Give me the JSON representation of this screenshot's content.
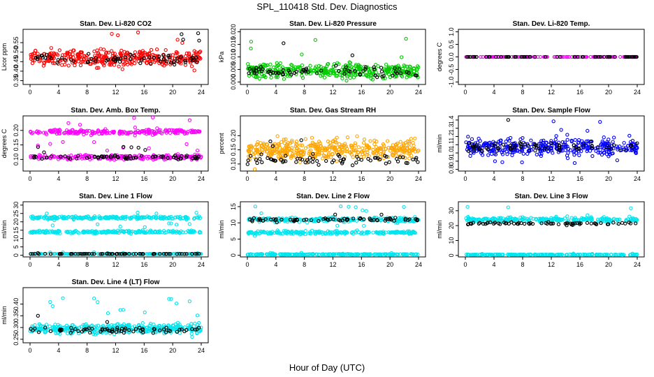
{
  "figure": {
    "title": "SPL_110418  Std. Dev. Diagnostics",
    "xlabel": "Hour of Day (UTC)"
  },
  "chart_data": [
    {
      "type": "scatter",
      "title": "Stan. Dev. Li-820 CO2",
      "ylabel": "Licor ppm",
      "xlim": [
        0,
        24
      ],
      "xticks": [
        0,
        4,
        8,
        12,
        16,
        20,
        24
      ],
      "ylim": [
        0.33,
        0.62
      ],
      "yticks": [
        0.35,
        0.4,
        0.45,
        0.5,
        0.55
      ],
      "ytick_labels": [
        "0.35",
        "0.40",
        "0.45",
        "0.50",
        "0.55"
      ],
      "series": [
        {
          "color": "#ff0000",
          "clusters": [
            {
              "center": 0.47,
              "spread": 0.04,
              "n": 360
            }
          ]
        },
        {
          "color": "#000000",
          "clusters": [
            {
              "center": 0.46,
              "spread": 0.025,
              "n": 70
            }
          ]
        }
      ]
    },
    {
      "type": "scatter",
      "title": "Stan. Dev. Li-820 Pressure",
      "ylabel": "kPa",
      "xlim": [
        0,
        24
      ],
      "xticks": [
        0,
        4,
        8,
        12,
        16,
        20,
        24
      ],
      "ylim": [
        -0.001,
        0.021
      ],
      "yticks": [
        0.0,
        0.005,
        0.01,
        0.015,
        0.02
      ],
      "ytick_labels": [
        "0.000",
        "0.005",
        "0.010",
        "0.015",
        "0.020"
      ],
      "series": [
        {
          "color": "#00cc00",
          "clusters": [
            {
              "center": 0.0045,
              "spread": 0.003,
              "n": 380
            }
          ]
        },
        {
          "color": "#000000",
          "clusters": [
            {
              "center": 0.004,
              "spread": 0.002,
              "n": 70
            }
          ]
        }
      ]
    },
    {
      "type": "scatter",
      "title": "Stan. Dev. Li-820 Temp.",
      "ylabel": "degrees C",
      "xlim": [
        0,
        24
      ],
      "xticks": [
        0,
        4,
        8,
        12,
        16,
        20,
        24
      ],
      "ylim": [
        -1.1,
        1.1
      ],
      "yticks": [
        -1.0,
        -0.5,
        0.0,
        0.5,
        1.0
      ],
      "ytick_labels": [
        "-1.0",
        "-0.5",
        "0.0",
        "0.5",
        "1.0"
      ],
      "series": [
        {
          "color": "#ff00ff",
          "clusters": [
            {
              "center": 0.0,
              "spread": 0.0,
              "n": 120
            }
          ]
        },
        {
          "color": "#000000",
          "clusters": [
            {
              "center": 0.0,
              "spread": 0.0,
              "n": 60
            }
          ]
        }
      ]
    },
    {
      "type": "scatter",
      "title": "Stan. Dev. Amb. Box Temp.",
      "ylabel": "degrees C",
      "xlim": [
        0,
        24
      ],
      "xticks": [
        0,
        4,
        8,
        12,
        16,
        20,
        24
      ],
      "ylim": [
        0.06,
        0.25
      ],
      "yticks": [
        0.1,
        0.15,
        0.2
      ],
      "ytick_labels": [
        "0.10",
        "0.15",
        "0.20"
      ],
      "series": [
        {
          "color": "#ff00ff",
          "clusters": [
            {
              "center": 0.195,
              "spread": 0.008,
              "n": 220
            },
            {
              "center": 0.108,
              "spread": 0.008,
              "n": 220
            }
          ]
        },
        {
          "color": "#000000",
          "clusters": [
            {
              "center": 0.108,
              "spread": 0.006,
              "n": 70
            }
          ]
        }
      ]
    },
    {
      "type": "scatter",
      "title": "Stan. Dev. Gas Stream RH",
      "ylabel": "percent",
      "xlim": [
        0,
        24
      ],
      "xticks": [
        0,
        4,
        8,
        12,
        16,
        20,
        24
      ],
      "ylim": [
        0.075,
        0.27
      ],
      "yticks": [
        0.1,
        0.15,
        0.2
      ],
      "ytick_labels": [
        "0.10",
        "0.15",
        "0.20"
      ],
      "series": [
        {
          "color": "#ffa500",
          "clusters": [
            {
              "center": 0.15,
              "spread": 0.035,
              "n": 420
            }
          ]
        },
        {
          "color": "#000000",
          "clusters": [
            {
              "center": 0.115,
              "spread": 0.015,
              "n": 70
            }
          ]
        }
      ]
    },
    {
      "type": "scatter",
      "title": "Stan. Dev. Sample Flow",
      "ylabel": "ml/min",
      "xlim": [
        0,
        24
      ],
      "xticks": [
        0,
        4,
        8,
        12,
        16,
        20,
        24
      ],
      "ylim": [
        0.78,
        1.45
      ],
      "yticks": [
        0.8,
        0.9,
        1.0,
        1.1,
        1.2,
        1.3,
        1.4
      ],
      "ytick_labels": [
        "0.8",
        "0.9",
        "1.0",
        "1.1",
        "1.2",
        "1.3",
        "1.4"
      ],
      "series": [
        {
          "color": "#0000ff",
          "clusters": [
            {
              "center": 1.07,
              "spread": 0.1,
              "n": 360
            }
          ]
        },
        {
          "color": "#000000",
          "clusters": [
            {
              "center": 1.07,
              "spread": 0.06,
              "n": 70
            }
          ]
        }
      ]
    },
    {
      "type": "scatter",
      "title": "Stan. Dev. Line 1 Flow",
      "ylabel": "ml/min",
      "xlim": [
        0,
        24
      ],
      "xticks": [
        0,
        4,
        8,
        12,
        16,
        20,
        24
      ],
      "ylim": [
        -1,
        32
      ],
      "yticks": [
        0,
        5,
        10,
        15,
        20,
        25,
        30
      ],
      "ytick_labels": [
        "0",
        "5",
        "10",
        "15",
        "20",
        "25",
        "30"
      ],
      "series": [
        {
          "color": "#00e5ee",
          "clusters": [
            {
              "center": 22.5,
              "spread": 0.8,
              "n": 220
            },
            {
              "center": 14,
              "spread": 0.8,
              "n": 220
            },
            {
              "center": 0.8,
              "spread": 0.15,
              "n": 200
            }
          ]
        },
        {
          "color": "#000000",
          "clusters": [
            {
              "center": 0.8,
              "spread": 0.1,
              "n": 70
            }
          ]
        }
      ]
    },
    {
      "type": "scatter",
      "title": "Stan. Dev. Line 2 Flow",
      "ylabel": "ml/min",
      "xlim": [
        0,
        24
      ],
      "xticks": [
        0,
        4,
        8,
        12,
        16,
        20,
        24
      ],
      "ylim": [
        -0.5,
        16.5
      ],
      "yticks": [
        0,
        5,
        10,
        15
      ],
      "ytick_labels": [
        "0",
        "5",
        "10",
        "15"
      ],
      "series": [
        {
          "color": "#00e5ee",
          "clusters": [
            {
              "center": 11,
              "spread": 0.7,
              "n": 220
            },
            {
              "center": 7,
              "spread": 0.5,
              "n": 220
            },
            {
              "center": 0.3,
              "spread": 0.1,
              "n": 220
            }
          ]
        },
        {
          "color": "#000000",
          "clusters": [
            {
              "center": 11,
              "spread": 0.5,
              "n": 70
            }
          ]
        }
      ]
    },
    {
      "type": "scatter",
      "title": "Stan. Dev. Line 3 Flow",
      "ylabel": "ml/min",
      "xlim": [
        0,
        24
      ],
      "xticks": [
        0,
        4,
        8,
        12,
        16,
        20,
        24
      ],
      "ylim": [
        -1,
        36
      ],
      "yticks": [
        0,
        10,
        20,
        30
      ],
      "ytick_labels": [
        "0",
        "10",
        "20",
        "30"
      ],
      "series": [
        {
          "color": "#00e5ee",
          "clusters": [
            {
              "center": 24,
              "spread": 1.5,
              "n": 260
            },
            {
              "center": 0.5,
              "spread": 0.2,
              "n": 220
            }
          ]
        },
        {
          "color": "#000000",
          "clusters": [
            {
              "center": 21.5,
              "spread": 1.0,
              "n": 70
            }
          ]
        }
      ]
    },
    {
      "type": "scatter",
      "title": "Stan. Dev. Line 4 (LT) Flow",
      "ylabel": "ml/min",
      "xlim": [
        0,
        24
      ],
      "xticks": [
        0,
        4,
        8,
        12,
        16,
        20,
        24
      ],
      "ylim": [
        0.235,
        0.47
      ],
      "yticks": [
        0.25,
        0.3,
        0.35,
        0.4
      ],
      "ytick_labels": [
        "0.25",
        "0.30",
        "0.35",
        "0.40"
      ],
      "series": [
        {
          "color": "#00e5ee",
          "clusters": [
            {
              "center": 0.295,
              "spread": 0.02,
              "n": 380
            }
          ]
        },
        {
          "color": "#000000",
          "clusters": [
            {
              "center": 0.29,
              "spread": 0.012,
              "n": 70
            }
          ]
        }
      ]
    }
  ]
}
